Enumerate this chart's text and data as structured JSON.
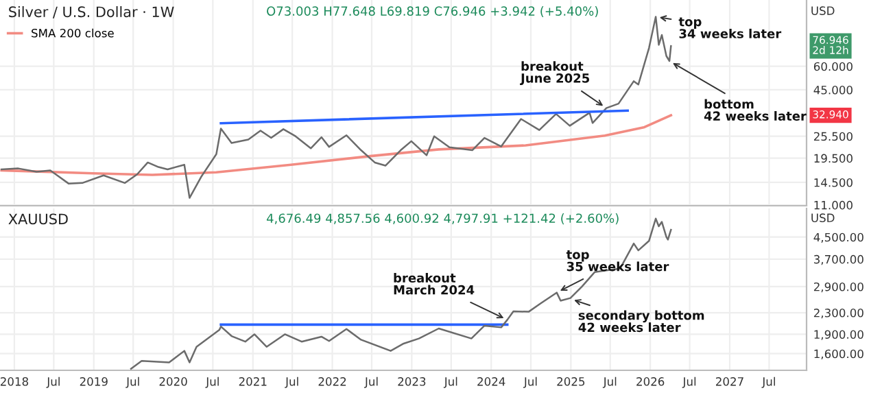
{
  "chart_data": [
    {
      "type": "line",
      "title": "Silver / U.S. Dollar · 1W",
      "subtitle": "O73.003 H77.648 L69.819 C76.946 +3.942 (+5.40%)",
      "log": "y",
      "grid": true,
      "legend": "top left",
      "tick_labels": "y",
      "xlim": [
        "2017-10-27",
        "2027-12-20"
      ],
      "ylim": [
        10.9,
        135
      ],
      "yticks": [
        {
          "value": 11,
          "label": "11.000"
        },
        {
          "value": 14.5,
          "label": "14.500"
        },
        {
          "value": 19.5,
          "label": "19.500"
        },
        {
          "value": 25.5,
          "label": "25.500"
        },
        {
          "value": 45,
          "label": "45.000"
        },
        {
          "value": 60,
          "label": "60.000"
        }
      ],
      "series": [
        {
          "color": "#6b6b6b",
          "x": [
            "2017-11-03",
            "2018-01-19",
            "2018-04-13",
            "2018-06-15",
            "2018-09-07",
            "2018-11-09",
            "2019-02-15",
            "2019-05-24",
            "2019-07-19",
            "2019-09-06",
            "2019-10-25",
            "2019-12-06",
            "2020-02-21",
            "2020-03-16",
            "2020-05-08",
            "2020-07-17",
            "2020-08-07",
            "2020-09-25",
            "2020-12-11",
            "2021-02-05",
            "2021-03-26",
            "2021-05-21",
            "2021-07-16",
            "2021-09-24",
            "2021-11-12",
            "2021-12-17",
            "2022-03-07",
            "2022-05-13",
            "2022-07-15",
            "2022-09-02",
            "2022-11-11",
            "2022-12-30",
            "2023-03-10",
            "2023-04-14",
            "2023-06-23",
            "2023-10-06",
            "2023-12-01",
            "2024-02-16",
            "2024-05-17",
            "2024-08-09",
            "2024-10-25",
            "2024-12-27",
            "2025-03-28",
            "2025-04-11",
            "2025-06-13",
            "2025-08-08",
            "2025-10-17",
            "2025-11-07",
            "2025-12-26",
            "2026-01-26",
            "2026-02-09",
            "2026-02-23",
            "2026-03-16",
            "2026-03-30",
            "2026-04-06"
          ],
          "values": [
            17.0,
            17.2,
            16.5,
            16.8,
            14.3,
            14.4,
            15.8,
            14.4,
            16.0,
            18.5,
            17.5,
            17.0,
            18.0,
            12.0,
            15.5,
            20.5,
            28.0,
            23.5,
            24.5,
            27.3,
            25.0,
            27.8,
            25.5,
            22.0,
            25.2,
            22.4,
            25.8,
            21.5,
            18.5,
            17.8,
            21.5,
            24.0,
            20.2,
            25.5,
            22.3,
            21.5,
            25.0,
            22.5,
            31.5,
            27.5,
            33.5,
            29.0,
            34.0,
            30.0,
            36.0,
            38.0,
            50.0,
            48.0,
            75.0,
            110.0,
            78.0,
            88.0,
            68.0,
            64.0,
            76.946
          ]
        },
        {
          "name": "SMA 200 close",
          "color": "#f28b82",
          "x": [
            "2017-11-03",
            "2018-12-28",
            "2019-09-27",
            "2020-07-17",
            "2021-06-25",
            "2022-06-24",
            "2023-05-05",
            "2024-06-07",
            "2025-06-06",
            "2025-12-05",
            "2026-04-06"
          ],
          "values": [
            16.8,
            16.2,
            15.9,
            16.4,
            18.0,
            20.0,
            21.7,
            22.8,
            25.7,
            28.5,
            32.94
          ]
        },
        {
          "color": "#2962ff",
          "x": [
            "2020-08-07",
            "2025-09-19"
          ],
          "values": [
            29.9,
            34.9
          ]
        }
      ],
      "annotations": [
        "USD",
        "76.946\n2d 12h",
        "32.940",
        {
          "text": "breakout\nJune 2025",
          "x": "2025-06-13",
          "y": 36
        },
        {
          "text": "top\n34 weeks later",
          "x": "2026-01-26",
          "y": 110
        },
        {
          "text": "bottom\n42 weeks later",
          "x": "2026-03-30",
          "y": 64
        }
      ]
    },
    {
      "type": "line",
      "title": "XAUUSD",
      "subtitle": "4,676.49 4,857.56 4,600.92 4,797.91 +121.42 (+2.60%)",
      "log": "y",
      "grid": true,
      "xlim": [
        "2017-10-27",
        "2027-12-20"
      ],
      "xticks": [
        {
          "value": "2018-01-01",
          "label": "2018"
        },
        {
          "value": "2018-07-01",
          "label": "Jul"
        },
        {
          "value": "2019-01-01",
          "label": "2019"
        },
        {
          "value": "2019-07-01",
          "label": "Jul"
        },
        {
          "value": "2020-01-01",
          "label": "2020"
        },
        {
          "value": "2020-07-01",
          "label": "Jul"
        },
        {
          "value": "2021-01-01",
          "label": "2021"
        },
        {
          "value": "2021-07-01",
          "label": "Jul"
        },
        {
          "value": "2022-01-01",
          "label": "2022"
        },
        {
          "value": "2022-07-01",
          "label": "Jul"
        },
        {
          "value": "2023-01-01",
          "label": "2023"
        },
        {
          "value": "2023-07-01",
          "label": "Jul"
        },
        {
          "value": "2024-01-01",
          "label": "2024"
        },
        {
          "value": "2024-07-01",
          "label": "Jul"
        },
        {
          "value": "2025-01-01",
          "label": "2025"
        },
        {
          "value": "2025-07-01",
          "label": "Jul"
        },
        {
          "value": "2026-01-01",
          "label": "2026"
        },
        {
          "value": "2026-07-01",
          "label": "Jul"
        },
        {
          "value": "2027-01-01",
          "label": "2027"
        },
        {
          "value": "2027-07-01",
          "label": "Jul"
        }
      ],
      "ylim": [
        1380,
        5800
      ],
      "yticks": [
        {
          "value": 1600,
          "label": "1,600.00"
        },
        {
          "value": 1900,
          "label": "1,900.00"
        },
        {
          "value": 2300,
          "label": "2,300.00"
        },
        {
          "value": 2900,
          "label": "2,900.00"
        },
        {
          "value": 3700,
          "label": "3,700.00"
        },
        {
          "value": 4500,
          "label": "4,500.00"
        }
      ],
      "series": [
        {
          "color": "#6b6b6b",
          "x": [
            "2019-06-21",
            "2019-08-09",
            "2019-12-13",
            "2020-02-21",
            "2020-03-16",
            "2020-04-17",
            "2020-07-31",
            "2020-08-07",
            "2020-09-25",
            "2020-11-27",
            "2021-01-08",
            "2021-03-05",
            "2021-05-28",
            "2021-08-13",
            "2021-11-12",
            "2021-12-17",
            "2022-03-07",
            "2022-05-13",
            "2022-09-26",
            "2022-11-25",
            "2023-02-03",
            "2023-05-05",
            "2023-10-02",
            "2023-12-01",
            "2024-02-16",
            "2024-03-15",
            "2024-04-12",
            "2024-06-21",
            "2024-08-16",
            "2024-10-28",
            "2024-11-15",
            "2024-12-30",
            "2025-02-21",
            "2025-04-21",
            "2025-06-13",
            "2025-08-15",
            "2025-10-17",
            "2025-11-07",
            "2025-12-26",
            "2026-01-26",
            "2026-02-09",
            "2026-02-23",
            "2026-03-16",
            "2026-03-23",
            "2026-04-06"
          ],
          "values": [
            1400,
            1500,
            1480,
            1640,
            1480,
            1700,
            1975,
            2035,
            1870,
            1780,
            1900,
            1700,
            1900,
            1780,
            1860,
            1790,
            1990,
            1810,
            1640,
            1750,
            1830,
            2000,
            1830,
            2050,
            2020,
            2160,
            2330,
            2320,
            2500,
            2750,
            2560,
            2620,
            2900,
            3300,
            3350,
            3400,
            4250,
            4000,
            4350,
            5300,
            4950,
            5150,
            4500,
            4400,
            4797.91
          ]
        },
        {
          "color": "#2962ff",
          "x": [
            "2020-08-07",
            "2024-03-15"
          ],
          "values": [
            2070,
            2070
          ]
        }
      ],
      "annotations": [
        "USD",
        {
          "text": "breakout\nMarch 2024",
          "x": "2024-03-15",
          "y": 2160
        },
        {
          "text": "top\n35 weeks later",
          "x": "2024-10-28",
          "y": 2750
        },
        {
          "text": "secondary bottom\n42 weeks later",
          "x": "2024-12-30",
          "y": 2600
        }
      ]
    }
  ]
}
